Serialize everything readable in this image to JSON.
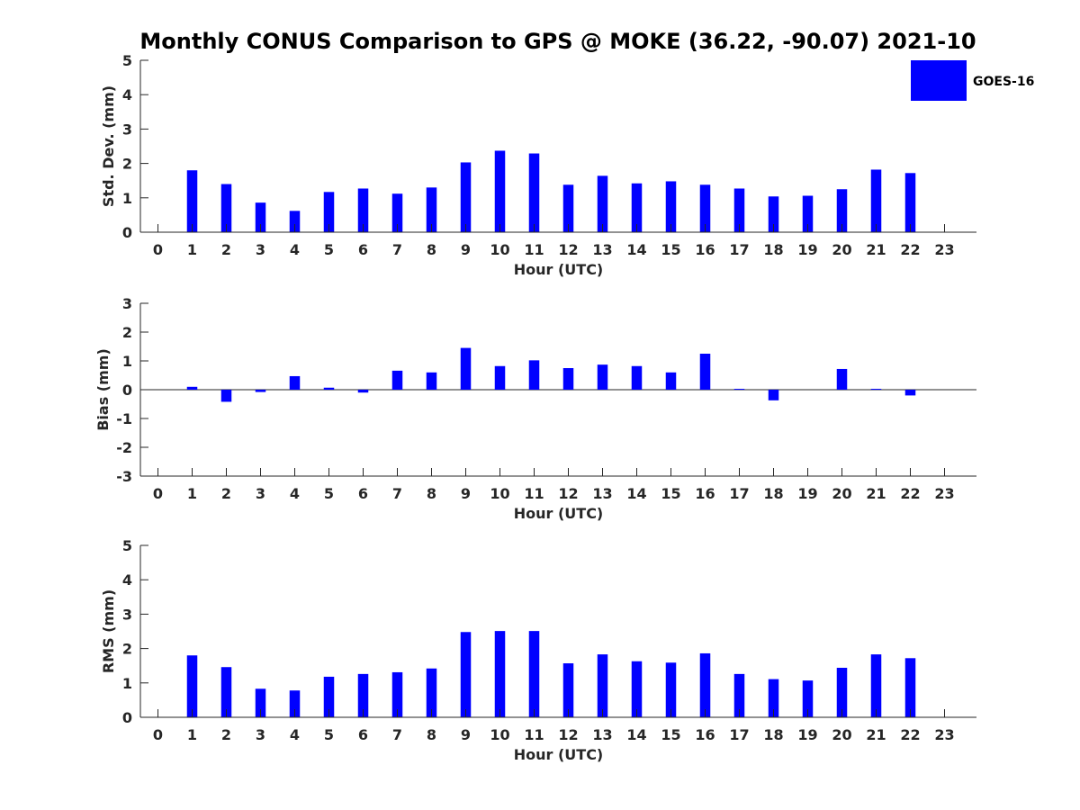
{
  "chart_data": [
    {
      "type": "bar",
      "title": "Monthly CONUS Comparison to GPS @ MOKE (36.22, -90.07) 2021-10",
      "xlabel": "Hour (UTC)",
      "ylabel": "Std. Dev. (mm)",
      "ylim": [
        0,
        5
      ],
      "yticks": [
        "0",
        "1",
        "2",
        "3",
        "4",
        "5"
      ],
      "categories": [
        "0",
        "1",
        "2",
        "3",
        "4",
        "5",
        "6",
        "7",
        "8",
        "9",
        "10",
        "11",
        "12",
        "13",
        "14",
        "15",
        "16",
        "17",
        "18",
        "19",
        "20",
        "21",
        "22",
        "23"
      ],
      "legend_position": "top-right",
      "series": [
        {
          "name": "GOES-16",
          "color": "#0000ff",
          "values": [
            null,
            1.8,
            1.4,
            0.86,
            0.62,
            1.17,
            1.27,
            1.12,
            1.3,
            2.03,
            2.37,
            2.29,
            1.38,
            1.64,
            1.42,
            1.48,
            1.38,
            1.27,
            1.04,
            1.06,
            1.25,
            1.82,
            1.72,
            null
          ]
        }
      ]
    },
    {
      "type": "bar",
      "xlabel": "Hour (UTC)",
      "ylabel": "Bias (mm)",
      "ylim": [
        -3,
        3
      ],
      "yticks": [
        "-3",
        "-2",
        "-1",
        "0",
        "1",
        "2",
        "3"
      ],
      "categories": [
        "0",
        "1",
        "2",
        "3",
        "4",
        "5",
        "6",
        "7",
        "8",
        "9",
        "10",
        "11",
        "12",
        "13",
        "14",
        "15",
        "16",
        "17",
        "18",
        "19",
        "20",
        "21",
        "22",
        "23"
      ],
      "series": [
        {
          "name": "GOES-16",
          "color": "#0000ff",
          "values": [
            null,
            0.1,
            -0.42,
            -0.08,
            0.47,
            0.07,
            -0.1,
            0.66,
            0.6,
            1.45,
            0.82,
            1.02,
            0.75,
            0.87,
            0.82,
            0.6,
            1.25,
            0.03,
            -0.37,
            null,
            0.72,
            0.03,
            -0.2,
            null
          ]
        }
      ]
    },
    {
      "type": "bar",
      "xlabel": "Hour (UTC)",
      "ylabel": "RMS (mm)",
      "ylim": [
        0,
        5
      ],
      "yticks": [
        "0",
        "1",
        "2",
        "3",
        "4",
        "5"
      ],
      "categories": [
        "0",
        "1",
        "2",
        "3",
        "4",
        "5",
        "6",
        "7",
        "8",
        "9",
        "10",
        "11",
        "12",
        "13",
        "14",
        "15",
        "16",
        "17",
        "18",
        "19",
        "20",
        "21",
        "22",
        "23"
      ],
      "series": [
        {
          "name": "GOES-16",
          "color": "#0000ff",
          "values": [
            null,
            1.8,
            1.46,
            0.83,
            0.78,
            1.18,
            1.26,
            1.31,
            1.42,
            2.48,
            2.51,
            2.51,
            1.57,
            1.83,
            1.63,
            1.59,
            1.86,
            1.26,
            1.11,
            1.07,
            1.44,
            1.83,
            1.72,
            null
          ]
        }
      ]
    }
  ]
}
